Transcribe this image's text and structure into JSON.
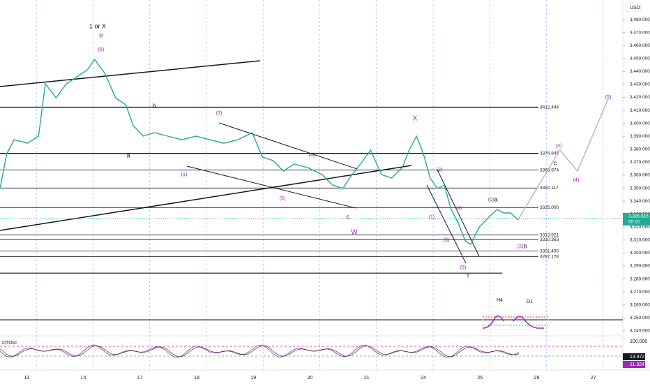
{
  "chart_data": {
    "type": "line",
    "currency": "USD",
    "color": "#22ab94",
    "x": [
      -0.47,
      -0.35,
      -0.22,
      0.02,
      0.21,
      0.33,
      0.52,
      0.7,
      0.89,
      1.07,
      1.2,
      1.38,
      1.57,
      1.75,
      1.88,
      2.06,
      2.25,
      2.49,
      2.74,
      2.99,
      3.23,
      3.48,
      3.73,
      3.98,
      4.16,
      4.35,
      4.53,
      4.72,
      4.96,
      5.21,
      5.4,
      5.58,
      5.7,
      5.89,
      6.07,
      6.26,
      6.44,
      6.63,
      6.75,
      6.88,
      7.0,
      7.12,
      7.25,
      7.37,
      7.49,
      7.62,
      7.74,
      7.83,
      7.99,
      8.17,
      8.3,
      8.42,
      8.54,
      8.67
    ],
    "values": [
      3349.8,
      3376.7,
      3387.4,
      3384.7,
      3390.1,
      3430.5,
      3419.7,
      3430.5,
      3435.9,
      3441.2,
      3449.3,
      3438.6,
      3419.7,
      3414.3,
      3398.2,
      3390.1,
      3392.8,
      3390.1,
      3387.4,
      3390.1,
      3387.4,
      3384.7,
      3387.4,
      3392.8,
      3374.0,
      3371.3,
      3363.2,
      3368.6,
      3365.9,
      3360.5,
      3352.4,
      3349.8,
      3357.8,
      3368.6,
      3379.4,
      3360.5,
      3357.8,
      3365.9,
      3379.4,
      3390.1,
      3376.7,
      3357.8,
      3349.8,
      3352.4,
      3333.6,
      3322.8,
      3309.4,
      3306.7,
      3320.2,
      3328.2,
      3333.6,
      3330.9,
      3330.9,
      3325.5
    ],
    "projection": {
      "color": "#b2b5be",
      "x": [
        8.67,
        9.41,
        9.72,
        10.27
      ],
      "values": [
        3325.5,
        3379.4,
        3363.2,
        3419.7
      ]
    },
    "xlim": [
      -0.47,
      10.52
    ],
    "ylim": [
      3236.7,
      3495.1
    ],
    "xticks": [
      {
        "value": 0,
        "label": "13"
      },
      {
        "value": 1,
        "label": "14"
      },
      {
        "value": 2,
        "label": "17"
      },
      {
        "value": 3,
        "label": "18"
      },
      {
        "value": 4,
        "label": "19"
      },
      {
        "value": 5,
        "label": "20"
      },
      {
        "value": 6,
        "label": "21"
      },
      {
        "value": 7,
        "label": "24"
      },
      {
        "value": 8,
        "label": "25"
      },
      {
        "value": 9,
        "label": "26"
      },
      {
        "value": 10,
        "label": "27"
      }
    ],
    "yticks": [
      {
        "value": 3240,
        "label": "3,240.000"
      },
      {
        "value": 3250,
        "label": "3,250.000"
      },
      {
        "value": 3260,
        "label": "3,260.000"
      },
      {
        "value": 3270,
        "label": "3,270.000"
      },
      {
        "value": 3280,
        "label": "3,280.000"
      },
      {
        "value": 3290,
        "label": "3,290.000"
      },
      {
        "value": 3300,
        "label": "3,300.000"
      },
      {
        "value": 3310,
        "label": "3,310.000"
      },
      {
        "value": 3320,
        "label": "3,320.000"
      },
      {
        "value": 3330,
        "label": "3,330.000"
      },
      {
        "value": 3340,
        "label": "3,340.000"
      },
      {
        "value": 3350,
        "label": "3,350.000"
      },
      {
        "value": 3360,
        "label": "3,360.000"
      },
      {
        "value": 3370,
        "label": "3,370.000"
      },
      {
        "value": 3380,
        "label": "3,380.000"
      },
      {
        "value": 3390,
        "label": "3,390.000"
      },
      {
        "value": 3400,
        "label": "3,400.000"
      },
      {
        "value": 3410,
        "label": "3,410.000"
      },
      {
        "value": 3420,
        "label": "3,420.000"
      },
      {
        "value": 3430,
        "label": "3,430.000"
      },
      {
        "value": 3440,
        "label": "3,440.000"
      },
      {
        "value": 3450,
        "label": "3,450.000"
      },
      {
        "value": 3460,
        "label": "3,460.000"
      },
      {
        "value": 3470,
        "label": "3,470.000"
      },
      {
        "value": 3480,
        "label": "3,480.000"
      }
    ],
    "levels": [
      {
        "value": 3412.444,
        "label": "3412.444"
      },
      {
        "value": 3376.845,
        "label": "3376.845"
      },
      {
        "value": 3363.974,
        "label": "3363.974"
      },
      {
        "value": 3350.117,
        "label": "3350.117"
      },
      {
        "value": 3335.0,
        "label": "3335.000"
      },
      {
        "value": 3313.921,
        "label": "3313.921"
      },
      {
        "value": 3310.363,
        "label": "3310.363"
      },
      {
        "value": 3301.493,
        "label": "3301.493"
      },
      {
        "value": 3297.178,
        "label": "3297.178"
      }
    ],
    "unlabeled_levels": [
      3284.5,
      3248.5
    ],
    "last_price": {
      "value": 3326.615,
      "label": "3,326.615",
      "countdown": "55:10"
    },
    "annotations": [
      "1 or X",
      "e",
      "(5)",
      "a",
      "b",
      "(1)",
      "(3)",
      "(5)",
      "(4)",
      "c",
      "W",
      "X",
      "(2)",
      "(1)",
      "(4)",
      "(3)",
      "(5)",
      "Y",
      "(1)",
      "a",
      "(2)",
      "b",
      "c",
      "(3)",
      "(4)",
      "(5)"
    ],
    "inset": [
      "H4",
      "D1"
    ],
    "oscillator": {
      "name": "DTOsc",
      "upper": {
        "value": 100,
        "label": "100.000"
      },
      "k": 13.972,
      "d": 11.324
    }
  }
}
